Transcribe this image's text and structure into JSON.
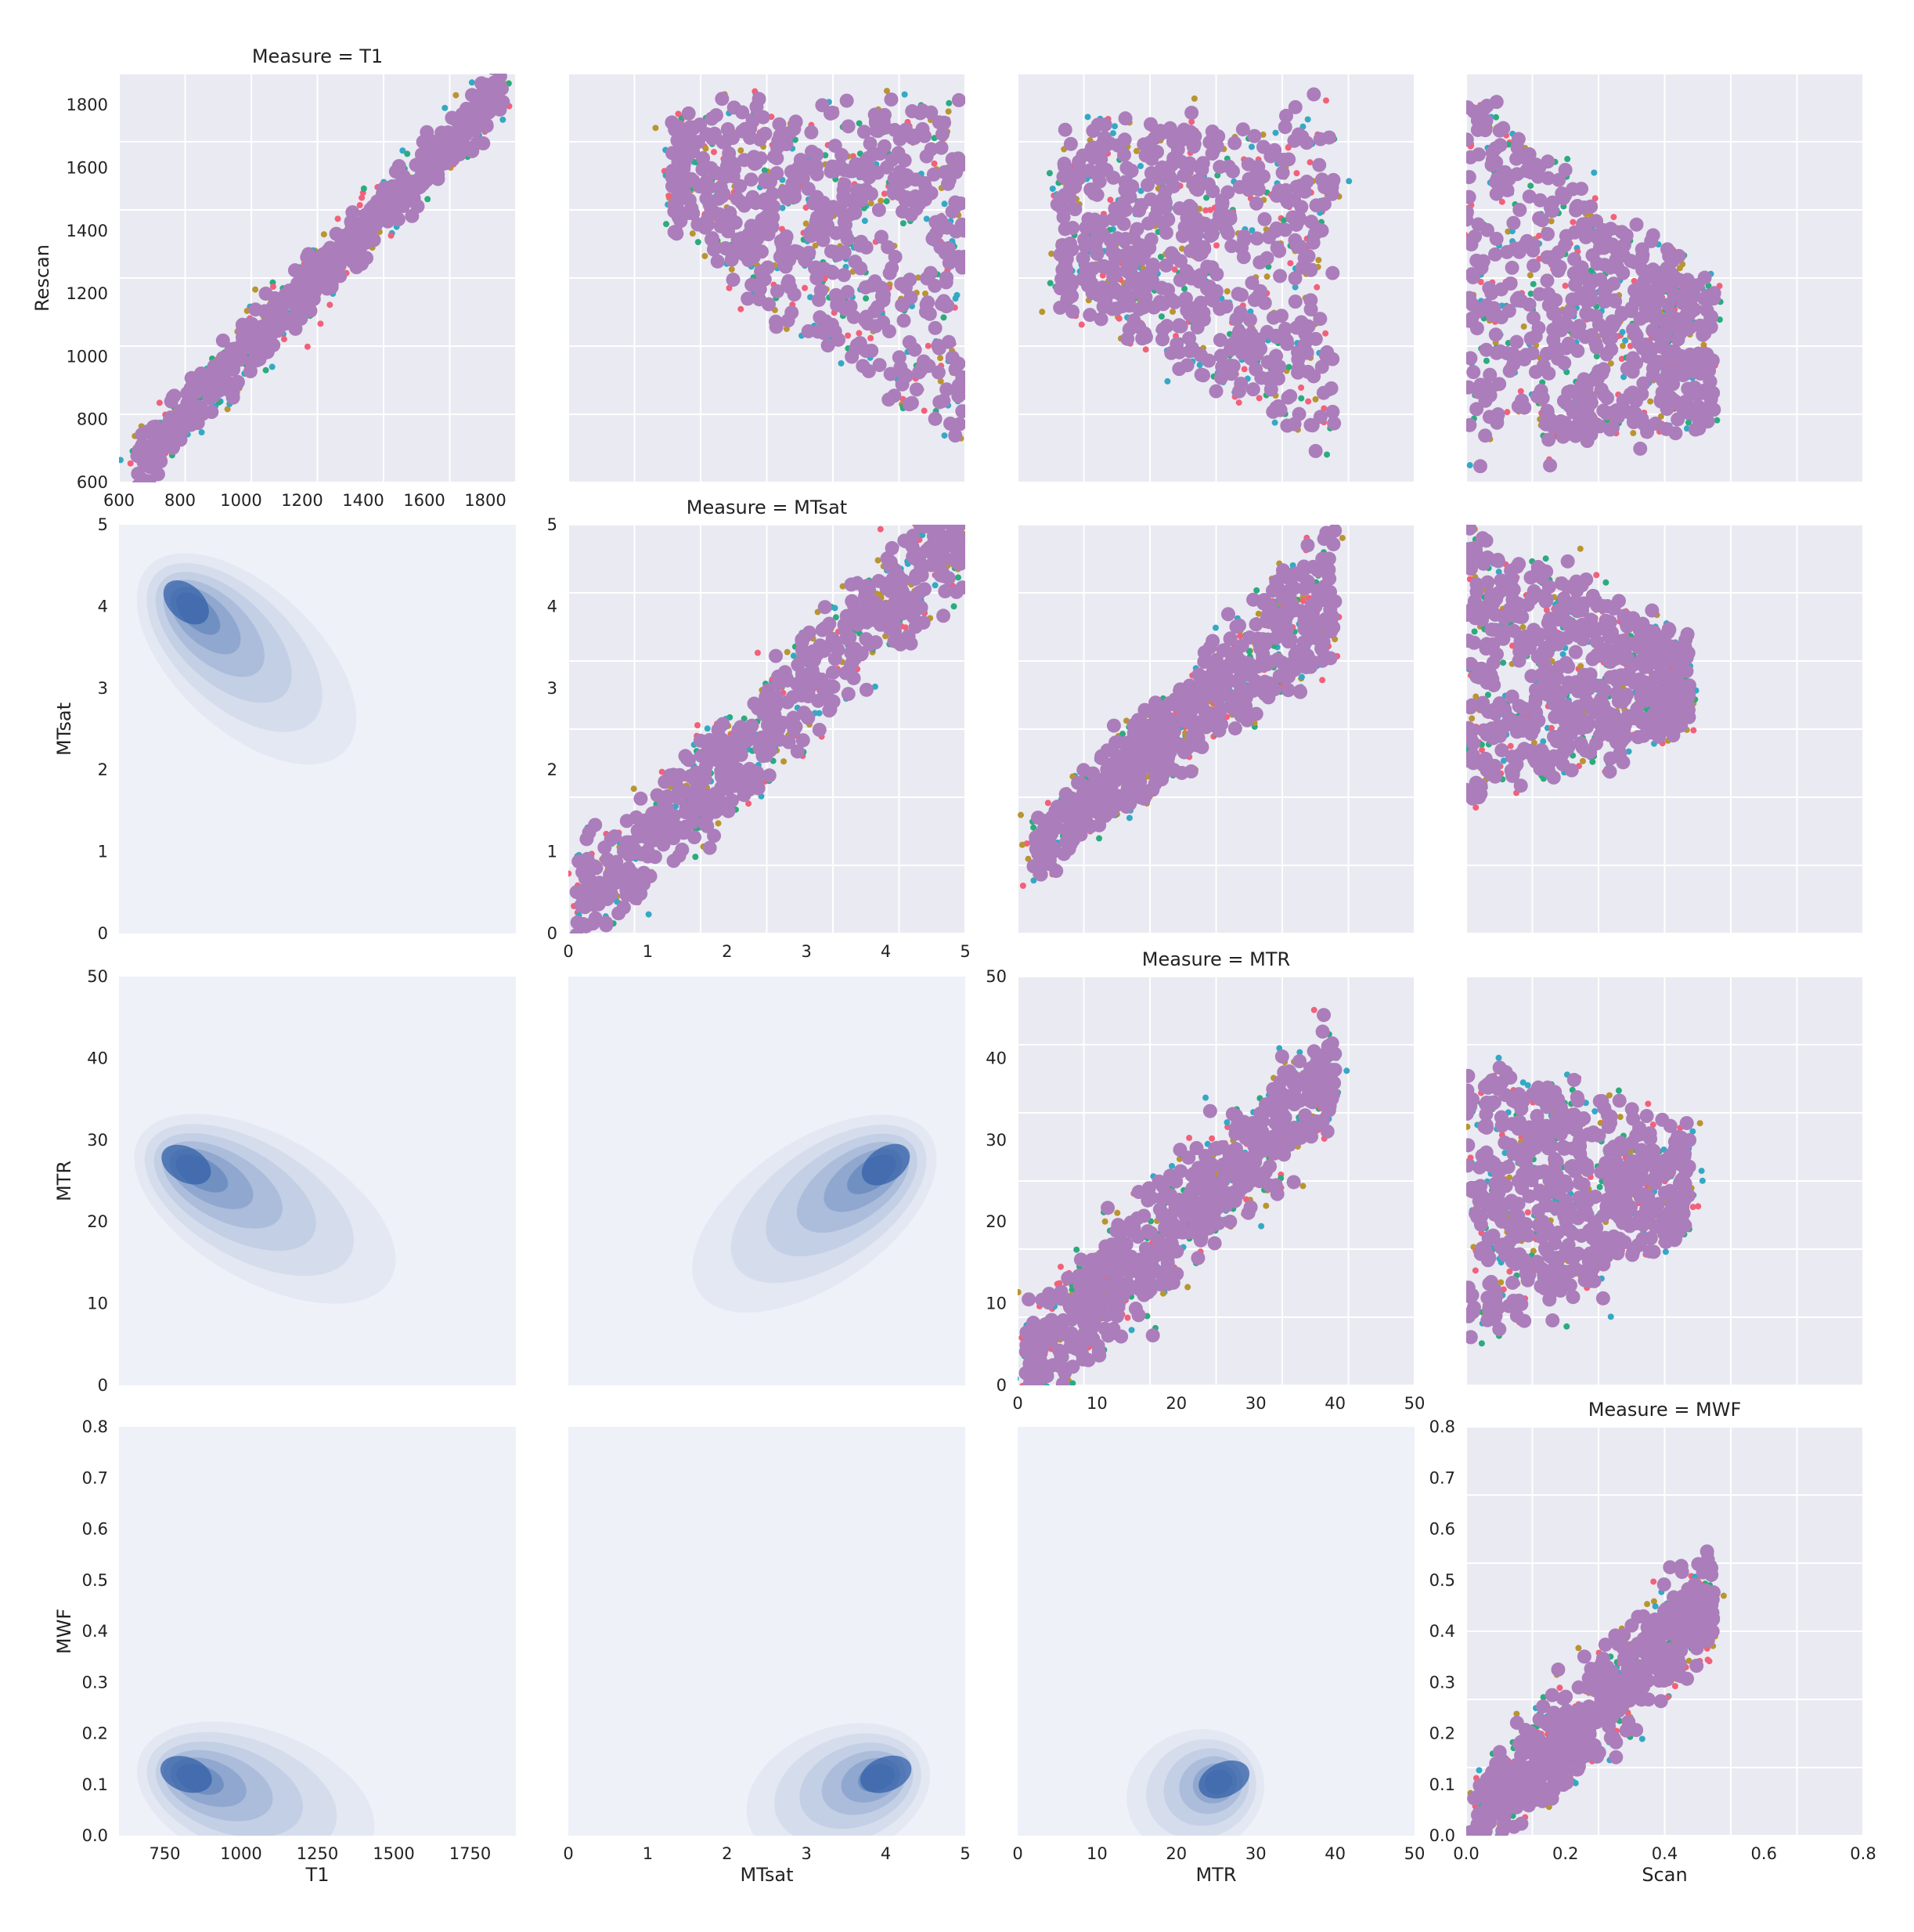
{
  "figure": {
    "background": "#ffffff",
    "axes_background": "#eaeaf2",
    "grid_color": "#ffffff"
  },
  "palette": [
    "#f2607a",
    "#b99530",
    "#2bab7e",
    "#33a9c4",
    "#ab7dba"
  ],
  "kde_color": "#3461a8",
  "chart_data": [
    {
      "type": "scatter",
      "row": 0,
      "col": 0,
      "title": "Measure = T1",
      "xlabel": "",
      "ylabel": "Rescan",
      "xlim": [
        600,
        1900
      ],
      "ylim": [
        600,
        1900
      ],
      "xticks": [
        "600",
        "800",
        "1000",
        "1200",
        "1400",
        "1600",
        "1800"
      ],
      "yticks": [
        "600",
        "800",
        "1000",
        "1200",
        "1400",
        "1600",
        "1800"
      ],
      "grid": true,
      "trend": {
        "slope": 1.0,
        "intercept": 0,
        "x": [
          660,
          1860
        ],
        "spread": 45
      }
    },
    {
      "type": "scatter",
      "row": 0,
      "col": 1,
      "xlim": [
        0,
        5
      ],
      "ylim": [
        600,
        1900
      ],
      "grid": true,
      "cloud": {
        "x": [
          1.3,
          5
        ],
        "y_top": [
          1750,
          1800
        ],
        "y_bottom": [
          1400,
          700
        ]
      }
    },
    {
      "type": "scatter",
      "row": 0,
      "col": 2,
      "xlim": [
        0,
        50
      ],
      "ylim": [
        600,
        1900
      ],
      "grid": true,
      "cloud": {
        "x": [
          5,
          40
        ],
        "y_top": [
          1700,
          1800
        ],
        "y_bottom": [
          1200,
          700
        ]
      }
    },
    {
      "type": "scatter",
      "row": 0,
      "col": 3,
      "xlim": [
        0,
        0.8
      ],
      "ylim": [
        600,
        1900
      ],
      "grid": true,
      "cloud": {
        "x": [
          0,
          0.5
        ],
        "y_top": [
          1850,
          1200
        ],
        "y_bottom": [
          700,
          800
        ]
      }
    },
    {
      "type": "kde",
      "row": 1,
      "col": 0,
      "xlabel": "",
      "ylabel": "MTsat",
      "xlim": [
        600,
        1900
      ],
      "ylim": [
        0,
        5
      ],
      "yticks": [
        "0",
        "1",
        "2",
        "3",
        "4",
        "5"
      ],
      "peak": {
        "x": 820,
        "y": 4.05
      },
      "tail": {
        "x": 1150,
        "y": 2.9
      }
    },
    {
      "type": "scatter",
      "row": 1,
      "col": 1,
      "title": "Measure = MTsat",
      "xlim": [
        0,
        5
      ],
      "ylim": [
        0,
        5
      ],
      "xticks": [
        "0",
        "1",
        "2",
        "3",
        "4",
        "5"
      ],
      "yticks": [
        "0",
        "1",
        "2",
        "3",
        "4",
        "5"
      ],
      "grid": true,
      "trend": {
        "slope": 0.93,
        "intercept": 0.25,
        "x": [
          0.1,
          5
        ],
        "spread": 0.35
      }
    },
    {
      "type": "scatter",
      "row": 1,
      "col": 2,
      "xlim": [
        0,
        50
      ],
      "ylim": [
        0,
        5
      ],
      "grid": true,
      "cloud": {
        "x": [
          2,
          40
        ],
        "y_top": [
          1.2,
          5
        ],
        "y_bottom": [
          0.8,
          3.5
        ]
      }
    },
    {
      "type": "scatter",
      "row": 1,
      "col": 3,
      "xlim": [
        0,
        0.8
      ],
      "ylim": [
        0,
        5
      ],
      "grid": true,
      "cloud": {
        "x": [
          0,
          0.45
        ],
        "y_top": [
          5,
          3.5
        ],
        "y_bottom": [
          1.6,
          2.6
        ]
      }
    },
    {
      "type": "kde",
      "row": 2,
      "col": 0,
      "ylabel": "MTR",
      "xlim": [
        600,
        1900
      ],
      "ylim": [
        0,
        50
      ],
      "yticks": [
        "0",
        "10",
        "20",
        "30",
        "40",
        "50"
      ],
      "peak": {
        "x": 820,
        "y": 27
      },
      "tail": {
        "x": 1250,
        "y": 18
      }
    },
    {
      "type": "kde",
      "row": 2,
      "col": 1,
      "xlim": [
        0,
        5
      ],
      "ylim": [
        0,
        50
      ],
      "peak": {
        "x": 4.0,
        "y": 27
      },
      "tail": {
        "x": 2.5,
        "y": 17
      }
    },
    {
      "type": "scatter",
      "row": 2,
      "col": 2,
      "title": "Measure = MTR",
      "xlim": [
        0,
        50
      ],
      "ylim": [
        0,
        50
      ],
      "xticks": [
        "0",
        "10",
        "20",
        "30",
        "40",
        "50"
      ],
      "yticks": [
        "0",
        "10",
        "20",
        "30",
        "40",
        "50"
      ],
      "grid": true,
      "trend": {
        "slope": 0.95,
        "intercept": 1,
        "x": [
          1,
          40
        ],
        "spread": 3.5
      }
    },
    {
      "type": "scatter",
      "row": 2,
      "col": 3,
      "xlim": [
        0,
        0.8
      ],
      "ylim": [
        0,
        50
      ],
      "grid": true,
      "cloud": {
        "x": [
          0,
          0.45
        ],
        "y_top": [
          40,
          30
        ],
        "y_bottom": [
          4,
          20
        ]
      }
    },
    {
      "type": "kde",
      "row": 3,
      "col": 0,
      "xlabel": "T1",
      "ylabel": "MWF",
      "xlim": [
        600,
        1900
      ],
      "ylim": [
        0,
        0.8
      ],
      "xticks": [
        "750",
        "1000",
        "1250",
        "1500",
        "1750"
      ],
      "yticks": [
        "0.0",
        "0.1",
        "0.2",
        "0.3",
        "0.4",
        "0.5",
        "0.6",
        "0.7",
        "0.8"
      ],
      "peak": {
        "x": 820,
        "y": 0.12
      },
      "tail": {
        "x": 1200,
        "y": 0.04
      }
    },
    {
      "type": "kde",
      "row": 3,
      "col": 1,
      "xlabel": "MTsat",
      "xlim": [
        0,
        5
      ],
      "ylim": [
        0,
        0.8
      ],
      "xticks": [
        "0",
        "1",
        "2",
        "3",
        "4",
        "5"
      ],
      "peak": {
        "x": 4.0,
        "y": 0.12
      },
      "tail": {
        "x": 3.0,
        "y": 0.06
      }
    },
    {
      "type": "kde",
      "row": 3,
      "col": 2,
      "xlabel": "MTR",
      "xlim": [
        0,
        50
      ],
      "ylim": [
        0,
        0.8
      ],
      "xticks": [
        "0",
        "10",
        "20",
        "30",
        "40",
        "50"
      ],
      "peak": {
        "x": 26,
        "y": 0.11
      },
      "tail": {
        "x": 20,
        "y": 0.07
      }
    },
    {
      "type": "scatter",
      "row": 3,
      "col": 3,
      "title": "Measure = MWF",
      "xlabel": "Scan",
      "xlim": [
        0,
        0.8
      ],
      "ylim": [
        0,
        0.8
      ],
      "xticks": [
        "0.0",
        "0.2",
        "0.4",
        "0.6",
        "0.8"
      ],
      "yticks": [
        "0.0",
        "0.1",
        "0.2",
        "0.3",
        "0.4",
        "0.5",
        "0.6",
        "0.7",
        "0.8"
      ],
      "grid": true,
      "trend": {
        "slope": 0.95,
        "intercept": 0.0,
        "x": [
          0.01,
          0.5
        ],
        "spread": 0.05
      }
    }
  ]
}
